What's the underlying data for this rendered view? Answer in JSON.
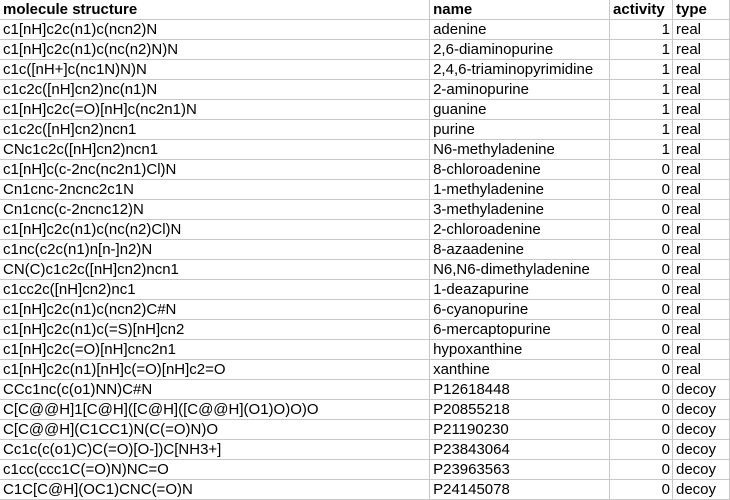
{
  "columns": [
    "molecule structure",
    "name",
    "activity",
    "type"
  ],
  "rows": [
    [
      "c1[nH]c2c(n1)c(ncn2)N",
      "adenine",
      "1",
      "real"
    ],
    [
      "c1[nH]c2c(n1)c(nc(n2)N)N",
      "2,6-diaminopurine",
      "1",
      "real"
    ],
    [
      "c1c([nH+]c(nc1N)N)N",
      "2,4,6-triaminopyrimidine",
      "1",
      "real"
    ],
    [
      "c1c2c([nH]cn2)nc(n1)N",
      "2-aminopurine",
      "1",
      "real"
    ],
    [
      "c1[nH]c2c(=O)[nH]c(nc2n1)N",
      "guanine",
      "1",
      "real"
    ],
    [
      "c1c2c([nH]cn2)ncn1",
      "purine",
      "1",
      "real"
    ],
    [
      "CNc1c2c([nH]cn2)ncn1",
      "N6-methyladenine",
      "1",
      "real"
    ],
    [
      "c1[nH]c(c-2nc(nc2n1)Cl)N",
      "8-chloroadenine",
      "0",
      "real"
    ],
    [
      "Cn1cnc-2ncnc2c1N",
      "1-methyladenine",
      "0",
      "real"
    ],
    [
      "Cn1cnc(c-2ncnc12)N",
      "3-methyladenine",
      "0",
      "real"
    ],
    [
      "c1[nH]c2c(n1)c(nc(n2)Cl)N",
      "2-chloroadenine",
      "0",
      "real"
    ],
    [
      "c1nc(c2c(n1)n[n-]n2)N",
      "8-azaadenine",
      "0",
      "real"
    ],
    [
      "CN(C)c1c2c([nH]cn2)ncn1",
      "N6,N6-dimethyladenine",
      "0",
      "real"
    ],
    [
      "c1cc2c([nH]cn2)nc1",
      "1-deazapurine",
      "0",
      "real"
    ],
    [
      "c1[nH]c2c(n1)c(ncn2)C#N",
      "6-cyanopurine",
      "0",
      "real"
    ],
    [
      "c1[nH]c2c(n1)c(=S)[nH]cn2",
      "6-mercaptopurine",
      "0",
      "real"
    ],
    [
      "c1[nH]c2c(=O)[nH]cnc2n1",
      "hypoxanthine",
      "0",
      "real"
    ],
    [
      "c1[nH]c2c(n1)[nH]c(=O)[nH]c2=O",
      "xanthine",
      "0",
      "real"
    ],
    [
      "CCc1nc(c(o1)NN)C#N",
      "P12618448",
      "0",
      "decoy"
    ],
    [
      "C[C@@H]1[C@H]([C@H]([C@@H](O1)O)O)O",
      "P20855218",
      "0",
      "decoy"
    ],
    [
      "C[C@@H](C1CC1)N(C(=O)N)O",
      "P21190230",
      "0",
      "decoy"
    ],
    [
      "Cc1c(c(o1)C)C(=O)[O-])C[NH3+]",
      "P23843064",
      "0",
      "decoy"
    ],
    [
      "c1cc(ccc1C(=O)N)NC=O",
      "P23963563",
      "0",
      "decoy"
    ],
    [
      "C1C[C@H](OC1)CNC(=O)N",
      "P24145078",
      "0",
      "decoy"
    ]
  ]
}
